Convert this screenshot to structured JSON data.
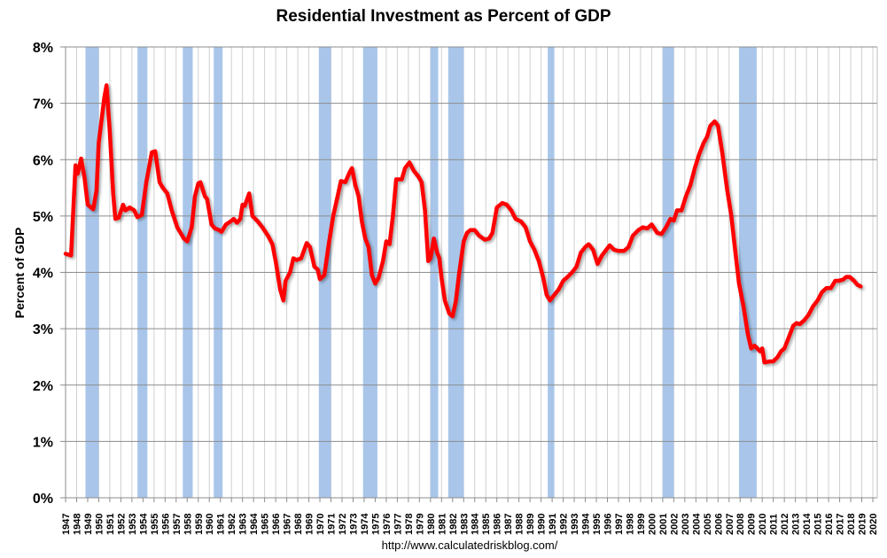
{
  "chart_data": {
    "type": "line",
    "title": "Residential Investment as Percent of GDP",
    "ylabel": "Percent of GDP",
    "xlabel": "",
    "source": "http://www.calculatedriskblog.com/",
    "xlim": [
      1947,
      2020
    ],
    "ylim": [
      0,
      8
    ],
    "y_ticks": [
      "0%",
      "1%",
      "2%",
      "3%",
      "4%",
      "5%",
      "6%",
      "7%",
      "8%"
    ],
    "x_ticks": [
      1947,
      1948,
      1949,
      1950,
      1951,
      1952,
      1953,
      1954,
      1955,
      1956,
      1957,
      1958,
      1959,
      1960,
      1961,
      1962,
      1963,
      1964,
      1965,
      1966,
      1967,
      1968,
      1969,
      1970,
      1971,
      1972,
      1973,
      1974,
      1975,
      1976,
      1977,
      1978,
      1979,
      1980,
      1981,
      1982,
      1983,
      1984,
      1985,
      1986,
      1987,
      1988,
      1989,
      1990,
      1991,
      1992,
      1993,
      1994,
      1995,
      1996,
      1997,
      1998,
      1999,
      2000,
      2001,
      2002,
      2003,
      2004,
      2005,
      2006,
      2007,
      2008,
      2009,
      2010,
      2011,
      2012,
      2013,
      2014,
      2015,
      2016,
      2017,
      2018,
      2019,
      2020
    ],
    "grid": true,
    "line_color": "#ff0000",
    "recession_color": "#a9c6ea",
    "recessions": [
      [
        1948.8,
        1950.0
      ],
      [
        1953.5,
        1954.4
      ],
      [
        1957.6,
        1958.5
      ],
      [
        1960.4,
        1961.2
      ],
      [
        1969.9,
        1971.0
      ],
      [
        1973.9,
        1975.2
      ],
      [
        1980.0,
        1980.7
      ],
      [
        1981.6,
        1983.0
      ],
      [
        1990.6,
        1991.2
      ],
      [
        2001.0,
        2002.0
      ],
      [
        2007.9,
        2009.5
      ]
    ],
    "series": [
      {
        "points": [
          [
            1947.0,
            4.33
          ],
          [
            1947.5,
            4.3
          ],
          [
            1947.9,
            5.9
          ],
          [
            1948.1,
            5.75
          ],
          [
            1948.4,
            6.02
          ],
          [
            1948.7,
            5.7
          ],
          [
            1949.0,
            5.2
          ],
          [
            1949.5,
            5.12
          ],
          [
            1949.8,
            5.45
          ],
          [
            1950.0,
            6.3
          ],
          [
            1950.5,
            7.1
          ],
          [
            1950.7,
            7.32
          ],
          [
            1951.0,
            6.5
          ],
          [
            1951.3,
            5.4
          ],
          [
            1951.5,
            4.95
          ],
          [
            1951.8,
            4.97
          ],
          [
            1952.2,
            5.2
          ],
          [
            1952.4,
            5.1
          ],
          [
            1952.8,
            5.15
          ],
          [
            1953.2,
            5.1
          ],
          [
            1953.5,
            4.98
          ],
          [
            1953.9,
            5.02
          ],
          [
            1954.3,
            5.6
          ],
          [
            1954.8,
            6.13
          ],
          [
            1955.1,
            6.15
          ],
          [
            1955.5,
            5.6
          ],
          [
            1955.8,
            5.5
          ],
          [
            1956.2,
            5.4
          ],
          [
            1956.6,
            5.1
          ],
          [
            1957.1,
            4.8
          ],
          [
            1957.4,
            4.7
          ],
          [
            1957.7,
            4.6
          ],
          [
            1958.0,
            4.55
          ],
          [
            1958.4,
            4.8
          ],
          [
            1958.7,
            5.35
          ],
          [
            1959.0,
            5.58
          ],
          [
            1959.2,
            5.6
          ],
          [
            1959.6,
            5.35
          ],
          [
            1959.8,
            5.3
          ],
          [
            1960.2,
            4.85
          ],
          [
            1960.5,
            4.78
          ],
          [
            1960.9,
            4.75
          ],
          [
            1961.1,
            4.72
          ],
          [
            1961.5,
            4.85
          ],
          [
            1961.9,
            4.9
          ],
          [
            1962.2,
            4.95
          ],
          [
            1962.5,
            4.88
          ],
          [
            1962.8,
            4.95
          ],
          [
            1963.0,
            5.2
          ],
          [
            1963.2,
            5.18
          ],
          [
            1963.6,
            5.4
          ],
          [
            1963.9,
            5.0
          ],
          [
            1964.4,
            4.9
          ],
          [
            1964.8,
            4.8
          ],
          [
            1965.3,
            4.65
          ],
          [
            1965.7,
            4.5
          ],
          [
            1966.0,
            4.2
          ],
          [
            1966.4,
            3.7
          ],
          [
            1966.7,
            3.5
          ],
          [
            1966.9,
            3.85
          ],
          [
            1967.3,
            4.0
          ],
          [
            1967.6,
            4.25
          ],
          [
            1967.9,
            4.22
          ],
          [
            1968.3,
            4.25
          ],
          [
            1968.8,
            4.52
          ],
          [
            1969.1,
            4.45
          ],
          [
            1969.5,
            4.1
          ],
          [
            1969.8,
            4.05
          ],
          [
            1970.0,
            3.88
          ],
          [
            1970.4,
            3.95
          ],
          [
            1970.8,
            4.5
          ],
          [
            1971.2,
            5.0
          ],
          [
            1971.6,
            5.35
          ],
          [
            1971.9,
            5.62
          ],
          [
            1972.3,
            5.6
          ],
          [
            1972.7,
            5.78
          ],
          [
            1972.9,
            5.85
          ],
          [
            1973.2,
            5.55
          ],
          [
            1973.5,
            5.35
          ],
          [
            1973.8,
            4.9
          ],
          [
            1974.1,
            4.6
          ],
          [
            1974.4,
            4.45
          ],
          [
            1974.7,
            3.95
          ],
          [
            1975.0,
            3.8
          ],
          [
            1975.3,
            3.9
          ],
          [
            1975.7,
            4.2
          ],
          [
            1976.0,
            4.55
          ],
          [
            1976.3,
            4.5
          ],
          [
            1976.6,
            5.0
          ],
          [
            1976.9,
            5.65
          ],
          [
            1977.4,
            5.65
          ],
          [
            1977.7,
            5.85
          ],
          [
            1978.1,
            5.95
          ],
          [
            1978.5,
            5.8
          ],
          [
            1978.9,
            5.7
          ],
          [
            1979.2,
            5.6
          ],
          [
            1979.5,
            5.1
          ],
          [
            1979.8,
            4.2
          ],
          [
            1980.0,
            4.25
          ],
          [
            1980.3,
            4.6
          ],
          [
            1980.6,
            4.35
          ],
          [
            1980.8,
            4.25
          ],
          [
            1981.0,
            3.9
          ],
          [
            1981.3,
            3.5
          ],
          [
            1981.7,
            3.27
          ],
          [
            1982.0,
            3.22
          ],
          [
            1982.3,
            3.5
          ],
          [
            1982.6,
            4.0
          ],
          [
            1983.0,
            4.55
          ],
          [
            1983.3,
            4.7
          ],
          [
            1983.6,
            4.75
          ],
          [
            1984.0,
            4.75
          ],
          [
            1984.4,
            4.65
          ],
          [
            1984.9,
            4.58
          ],
          [
            1985.3,
            4.6
          ],
          [
            1985.6,
            4.7
          ],
          [
            1986.0,
            5.15
          ],
          [
            1986.5,
            5.23
          ],
          [
            1986.9,
            5.2
          ],
          [
            1987.3,
            5.1
          ],
          [
            1987.7,
            4.95
          ],
          [
            1988.2,
            4.9
          ],
          [
            1988.6,
            4.8
          ],
          [
            1989.0,
            4.55
          ],
          [
            1989.4,
            4.4
          ],
          [
            1989.8,
            4.2
          ],
          [
            1990.2,
            3.9
          ],
          [
            1990.5,
            3.6
          ],
          [
            1990.8,
            3.5
          ],
          [
            1991.2,
            3.6
          ],
          [
            1991.6,
            3.7
          ],
          [
            1992.0,
            3.85
          ],
          [
            1992.4,
            3.92
          ],
          [
            1992.8,
            4.0
          ],
          [
            1993.2,
            4.1
          ],
          [
            1993.6,
            4.35
          ],
          [
            1994.0,
            4.45
          ],
          [
            1994.3,
            4.5
          ],
          [
            1994.7,
            4.4
          ],
          [
            1995.1,
            4.15
          ],
          [
            1995.5,
            4.3
          ],
          [
            1995.9,
            4.4
          ],
          [
            1996.2,
            4.48
          ],
          [
            1996.6,
            4.4
          ],
          [
            1997.0,
            4.38
          ],
          [
            1997.5,
            4.38
          ],
          [
            1997.9,
            4.45
          ],
          [
            1998.3,
            4.65
          ],
          [
            1998.8,
            4.75
          ],
          [
            1999.2,
            4.8
          ],
          [
            1999.6,
            4.78
          ],
          [
            2000.0,
            4.85
          ],
          [
            2000.5,
            4.7
          ],
          [
            2000.9,
            4.68
          ],
          [
            2001.3,
            4.8
          ],
          [
            2001.7,
            4.95
          ],
          [
            2002.0,
            4.92
          ],
          [
            2002.3,
            5.1
          ],
          [
            2002.7,
            5.1
          ],
          [
            2003.1,
            5.35
          ],
          [
            2003.5,
            5.55
          ],
          [
            2003.9,
            5.85
          ],
          [
            2004.3,
            6.1
          ],
          [
            2004.7,
            6.3
          ],
          [
            2005.0,
            6.4
          ],
          [
            2005.3,
            6.6
          ],
          [
            2005.7,
            6.68
          ],
          [
            2006.0,
            6.6
          ],
          [
            2006.4,
            6.1
          ],
          [
            2006.8,
            5.5
          ],
          [
            2007.2,
            5.0
          ],
          [
            2007.6,
            4.3
          ],
          [
            2007.9,
            3.8
          ],
          [
            2008.3,
            3.4
          ],
          [
            2008.7,
            2.9
          ],
          [
            2009.0,
            2.65
          ],
          [
            2009.3,
            2.7
          ],
          [
            2009.8,
            2.6
          ],
          [
            2010.0,
            2.65
          ],
          [
            2010.2,
            2.4
          ],
          [
            2010.7,
            2.42
          ],
          [
            2011.0,
            2.42
          ],
          [
            2011.4,
            2.5
          ],
          [
            2011.7,
            2.6
          ],
          [
            2012.0,
            2.65
          ],
          [
            2012.4,
            2.85
          ],
          [
            2012.8,
            3.05
          ],
          [
            2013.1,
            3.1
          ],
          [
            2013.4,
            3.08
          ],
          [
            2013.8,
            3.15
          ],
          [
            2014.2,
            3.25
          ],
          [
            2014.6,
            3.4
          ],
          [
            2015.0,
            3.5
          ],
          [
            2015.4,
            3.65
          ],
          [
            2015.8,
            3.72
          ],
          [
            2016.2,
            3.72
          ],
          [
            2016.6,
            3.85
          ],
          [
            2016.9,
            3.85
          ],
          [
            2017.3,
            3.87
          ],
          [
            2017.6,
            3.92
          ],
          [
            2017.9,
            3.92
          ],
          [
            2018.3,
            3.85
          ],
          [
            2018.6,
            3.78
          ],
          [
            2018.9,
            3.75
          ]
        ]
      }
    ]
  }
}
